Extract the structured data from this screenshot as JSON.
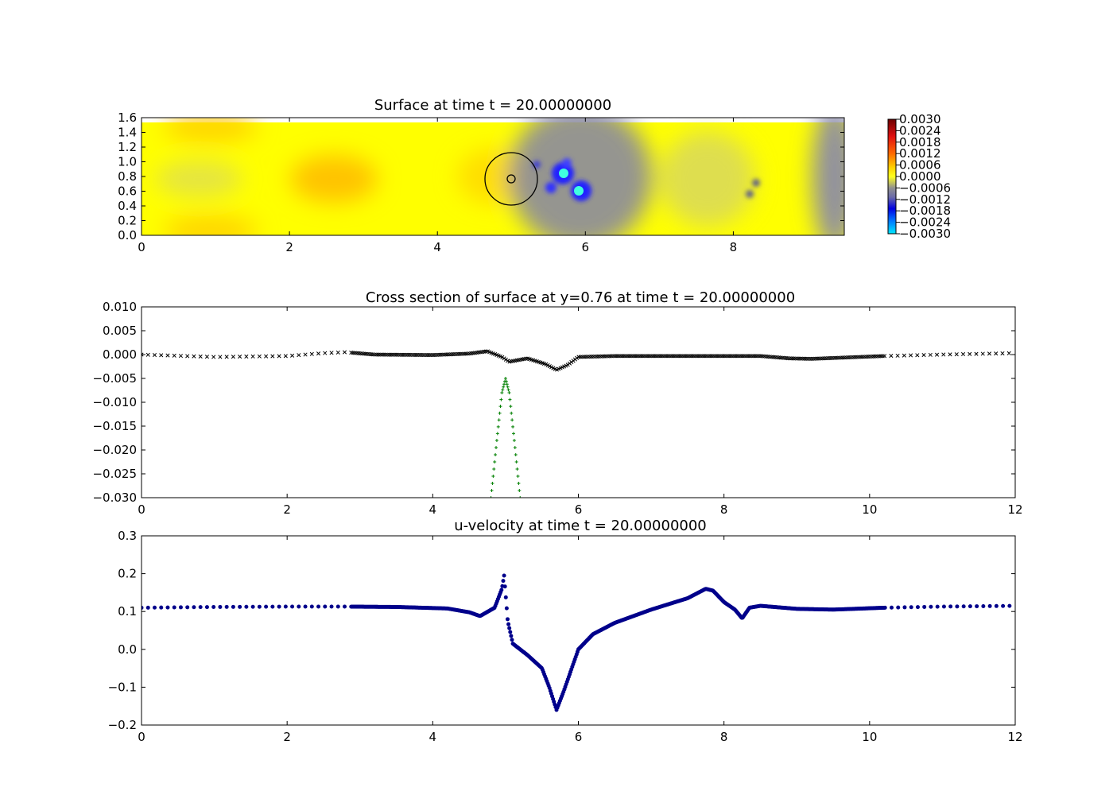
{
  "chart_data": [
    {
      "type": "heatmap",
      "title": "Surface at time t =    20.00000000",
      "xlim": [
        0,
        9.5
      ],
      "ylim": [
        0,
        1.6
      ],
      "x_ticks": [
        "0",
        "2",
        "4",
        "6",
        "8"
      ],
      "y_ticks": [
        "0.0",
        "0.2",
        "0.4",
        "0.6",
        "0.8",
        "1.0",
        "1.2",
        "1.4",
        "1.6"
      ],
      "colorbar": {
        "ticks": [
          "0.0030",
          "0.0024",
          "0.0018",
          "0.0012",
          "0.0006",
          "0.0000",
          "−0.0006",
          "−0.0012",
          "−0.0018",
          "−0.0024",
          "−0.0030"
        ],
        "range": [
          -0.003,
          0.003
        ]
      },
      "features": {
        "cylinder": {
          "x": 5.0,
          "y": 0.76,
          "r": 0.35,
          "inner_r": 0.05
        },
        "blobs": [
          {
            "x": 5.72,
            "y": 0.83,
            "value": -0.003
          },
          {
            "x": 5.93,
            "y": 0.6,
            "value": -0.003
          },
          {
            "x": 5.55,
            "y": 0.65,
            "value": -0.002
          },
          {
            "x": 5.78,
            "y": 0.95,
            "value": -0.0018
          },
          {
            "x": 5.35,
            "y": 0.93,
            "value": -0.0015
          },
          {
            "x": 8.3,
            "y": 0.68,
            "value": -0.001
          },
          {
            "x": 8.22,
            "y": 0.55,
            "value": -0.001
          }
        ]
      }
    },
    {
      "type": "scatter",
      "title": "Cross section of surface at y=0.76 at time t =    20.00000000",
      "xlim": [
        0,
        12
      ],
      "ylim": [
        -0.03,
        0.01
      ],
      "x_ticks": [
        "0",
        "2",
        "4",
        "6",
        "8",
        "10",
        "12"
      ],
      "y_ticks": [
        "0.010",
        "0.005",
        "0.000",
        "−0.005",
        "−0.010",
        "−0.015",
        "−0.020",
        "−0.025",
        "−0.030"
      ],
      "series": [
        {
          "marker": "x",
          "color": "#000000",
          "x": [
            0,
            1,
            2,
            2.5,
            2.8,
            3.2,
            4,
            4.5,
            4.75,
            4.95,
            5.05,
            5.3,
            5.55,
            5.7,
            5.85,
            6.0,
            6.5,
            7.5,
            8.5,
            8.9,
            9.2,
            10.2,
            11,
            12
          ],
          "y": [
            0.0,
            -0.0005,
            -0.0003,
            0.0003,
            0.0005,
            0.0,
            -0.0001,
            0.0002,
            0.0007,
            -0.0005,
            -0.0015,
            -0.0008,
            -0.002,
            -0.0032,
            -0.0022,
            -0.0005,
            -0.0003,
            -0.0003,
            -0.0003,
            -0.0008,
            -0.0009,
            -0.0003,
            0.0,
            0.0003
          ]
        },
        {
          "marker": "+",
          "color": "#008000",
          "x": [
            4.8,
            4.88,
            4.95,
            5.0,
            5.05,
            5.12,
            5.2
          ],
          "y": [
            -0.03,
            -0.018,
            -0.008,
            -0.005,
            -0.008,
            -0.018,
            -0.03
          ]
        }
      ]
    },
    {
      "type": "scatter",
      "title": "u-velocity at time t =    20.00000000",
      "xlim": [
        0,
        12
      ],
      "ylim": [
        -0.2,
        0.3
      ],
      "x_ticks": [
        "0",
        "2",
        "4",
        "6",
        "8",
        "10",
        "12"
      ],
      "y_ticks": [
        "0.3",
        "0.2",
        "0.1",
        "0.0",
        "−0.1",
        "−0.2"
      ],
      "series": [
        {
          "marker": "o",
          "color": "#00008b",
          "x": [
            0,
            1,
            2,
            2.8,
            3.5,
            4.2,
            4.5,
            4.65,
            4.85,
            4.95,
            4.98,
            5.03,
            5.1,
            5.3,
            5.5,
            5.6,
            5.7,
            5.8,
            6.0,
            6.2,
            6.5,
            7.0,
            7.5,
            7.75,
            7.85,
            8.0,
            8.15,
            8.25,
            8.35,
            8.5,
            9.0,
            9.5,
            10.2,
            11,
            12
          ],
          "y": [
            0.11,
            0.112,
            0.113,
            0.113,
            0.112,
            0.108,
            0.098,
            0.088,
            0.11,
            0.16,
            0.195,
            0.075,
            0.015,
            -0.015,
            -0.05,
            -0.1,
            -0.16,
            -0.11,
            0.0,
            0.04,
            0.07,
            0.105,
            0.135,
            0.16,
            0.155,
            0.125,
            0.105,
            0.082,
            0.11,
            0.115,
            0.107,
            0.105,
            0.11,
            0.113,
            0.115
          ]
        }
      ]
    }
  ]
}
